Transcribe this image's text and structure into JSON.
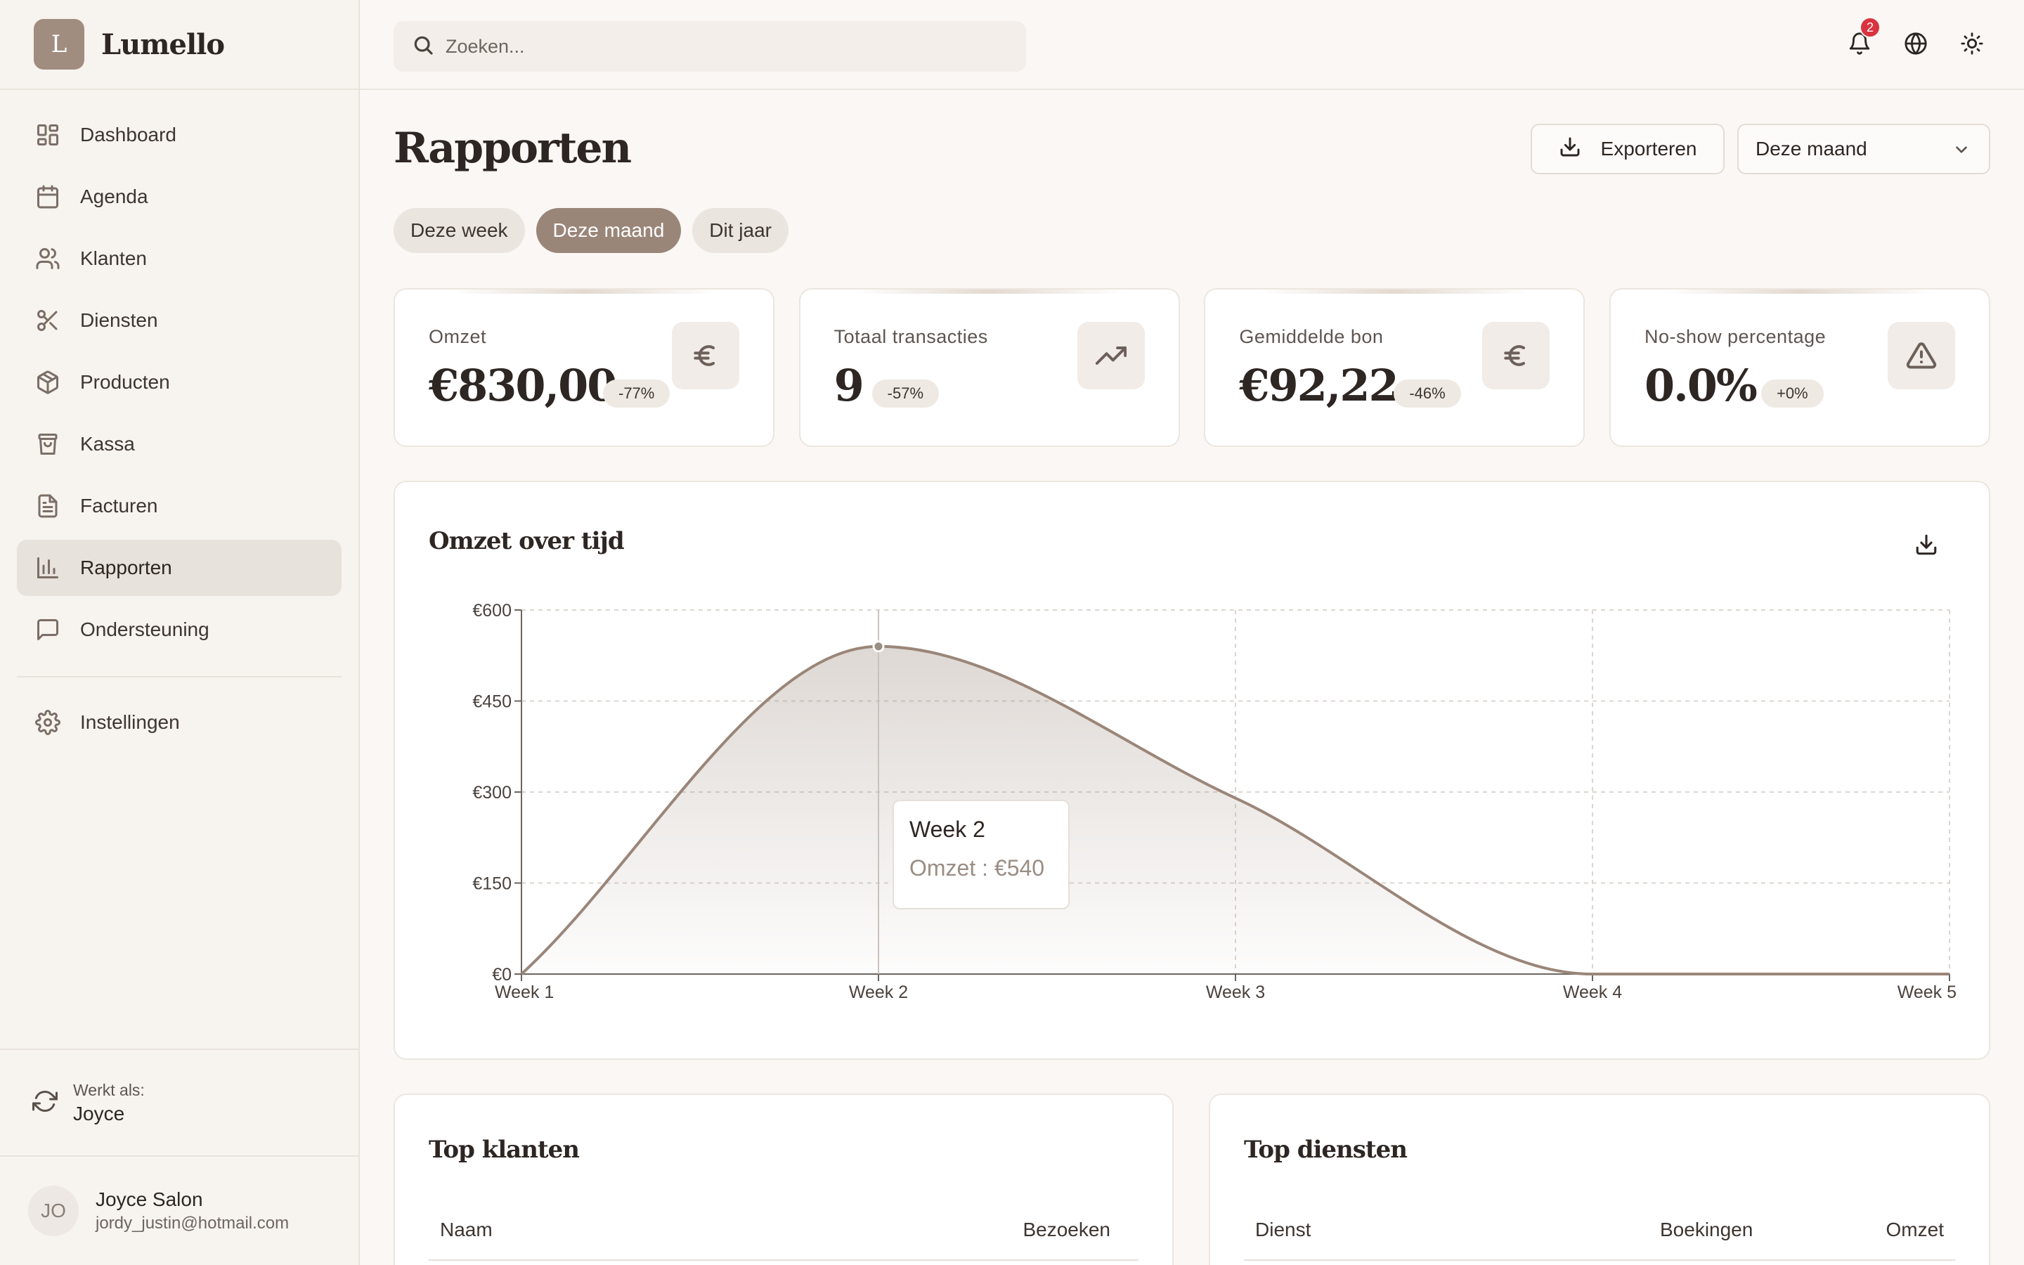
{
  "brand": {
    "initial": "L",
    "name": "Lumello"
  },
  "sidebar": {
    "items": [
      {
        "label": "Dashboard",
        "icon": "dashboard-icon",
        "active": false
      },
      {
        "label": "Agenda",
        "icon": "calendar-icon",
        "active": false
      },
      {
        "label": "Klanten",
        "icon": "users-icon",
        "active": false
      },
      {
        "label": "Diensten",
        "icon": "scissors-icon",
        "active": false
      },
      {
        "label": "Producten",
        "icon": "package-icon",
        "active": false
      },
      {
        "label": "Kassa",
        "icon": "shopping-bag-icon",
        "active": false
      },
      {
        "label": "Facturen",
        "icon": "file-text-icon",
        "active": false
      },
      {
        "label": "Rapporten",
        "icon": "bar-chart-icon",
        "active": true
      },
      {
        "label": "Ondersteuning",
        "icon": "message-square-icon",
        "active": false
      }
    ],
    "settings": {
      "label": "Instellingen",
      "icon": "gear-icon"
    },
    "works_as": {
      "label": "Werkt als:",
      "name": "Joyce"
    },
    "profile": {
      "initials": "JO",
      "name": "Joyce Salon",
      "email": "jordy_justin@hotmail.com"
    }
  },
  "topbar": {
    "search_placeholder": "Zoeken...",
    "notification_count": "2"
  },
  "page": {
    "title": "Rapporten",
    "export_label": "Exporteren",
    "period_select": "Deze maand",
    "tabs": [
      {
        "label": "Deze week",
        "active": false
      },
      {
        "label": "Deze maand",
        "active": true
      },
      {
        "label": "Dit jaar",
        "active": false
      }
    ]
  },
  "kpis": [
    {
      "label": "Omzet",
      "value": "€830,00",
      "change": "-77%",
      "icon": "euro-icon"
    },
    {
      "label": "Totaal transacties",
      "value": "9",
      "change": "-57%",
      "icon": "trending-up-icon"
    },
    {
      "label": "Gemiddelde bon",
      "value": "€92,22",
      "change": "-46%",
      "icon": "euro-icon"
    },
    {
      "label": "No-show percentage",
      "value": "0.0%",
      "change": "+0%",
      "icon": "alert-triangle-icon"
    }
  ],
  "chart": {
    "title": "Omzet over tijd",
    "tooltip": {
      "title": "Week 2",
      "series": "Omzet",
      "value": "€540"
    }
  },
  "chart_data": {
    "type": "area",
    "title": "Omzet over tijd",
    "categories": [
      "Week 1",
      "Week 2",
      "Week 3",
      "Week 4",
      "Week 5"
    ],
    "series": [
      {
        "name": "Omzet",
        "values": [
          0,
          540,
          290,
          0,
          0
        ]
      }
    ],
    "y_ticks": [
      "€0",
      "€150",
      "€300",
      "€450",
      "€600"
    ],
    "ylim": [
      0,
      600
    ],
    "grid": true,
    "accent_color": "#9a8679"
  },
  "top_clients": {
    "title": "Top klanten",
    "columns": [
      "Naam",
      "Bezoeken"
    ]
  },
  "top_services": {
    "title": "Top diensten",
    "columns": [
      "Dienst",
      "Boekingen",
      "Omzet"
    ]
  },
  "colors": {
    "accent": "#9a8679",
    "badge": "#d8333f",
    "background": "#faf7f4"
  }
}
